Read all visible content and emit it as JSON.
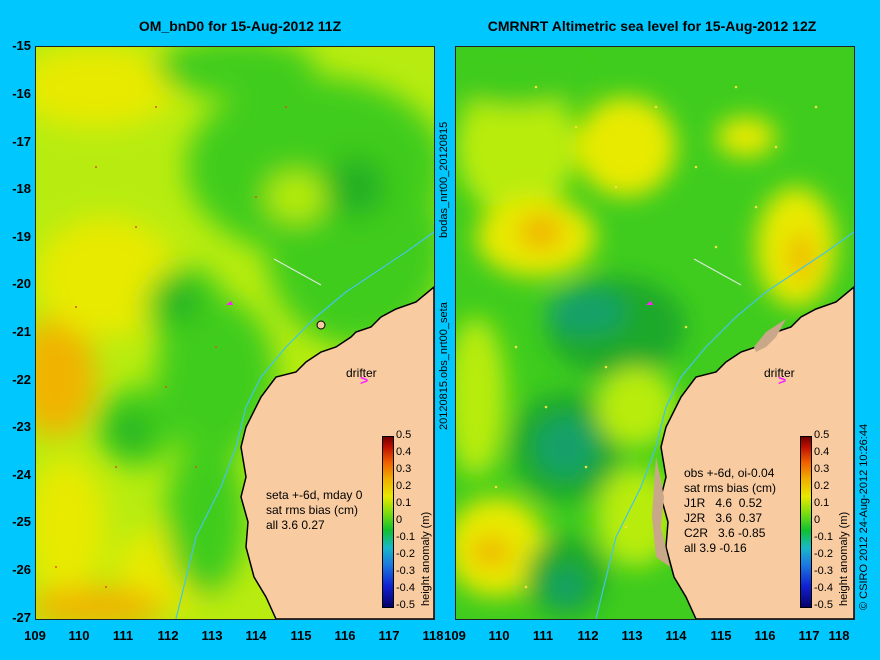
{
  "panels": [
    {
      "title": "OM_bnD0 for 15-Aug-2012 11Z",
      "stats": "seta +-6d, mday 0\nsat rms bias (cm)\nall 3.6 0.27"
    },
    {
      "title": "CMRNRT Altimetric sea level  for 15-Aug-2012 12Z",
      "stats": "obs +-6d, oi-0.04\nsat rms bias (cm)\nJ1R   4.6  0.52\nJ2R   3.6  0.37\nC2R   3.6 -0.85\nall 3.9 -0.16"
    }
  ],
  "axes": {
    "lat_ticks": [
      "-15",
      "-16",
      "-17",
      "-18",
      "-19",
      "-20",
      "-21",
      "-22",
      "-23",
      "-24",
      "-25",
      "-26",
      "-27"
    ],
    "lon_ticks": [
      "109",
      "110",
      "111",
      "112",
      "113",
      "114",
      "115",
      "116",
      "117",
      "118"
    ],
    "lon_range": [
      109,
      118
    ],
    "lat_range": [
      -27,
      -15
    ]
  },
  "labels": {
    "drifter": "drifter",
    "drifter_marker": ">",
    "side_top": "bodas_nrt00_20120815",
    "side_bottom": "20120815.obs_nrt00_seta",
    "copyright": "© CSIRO 2012  24-Aug-2012 10:26:44"
  },
  "colorbar": {
    "ticks": [
      "0.5",
      "0.4",
      "0.3",
      "0.2",
      "0.1",
      "0",
      "-0.1",
      "-0.2",
      "-0.3",
      "-0.4",
      "-0.5"
    ],
    "label": "height anomaly (m)"
  },
  "colors": {
    "background": "#00c8ff",
    "land": "#f8cba0",
    "drifter": "#ff20ff",
    "green": "#3fcc1e",
    "yellow_green": "#b8ec10",
    "yellow": "#e8ea00",
    "orange": "#f0b400"
  }
}
